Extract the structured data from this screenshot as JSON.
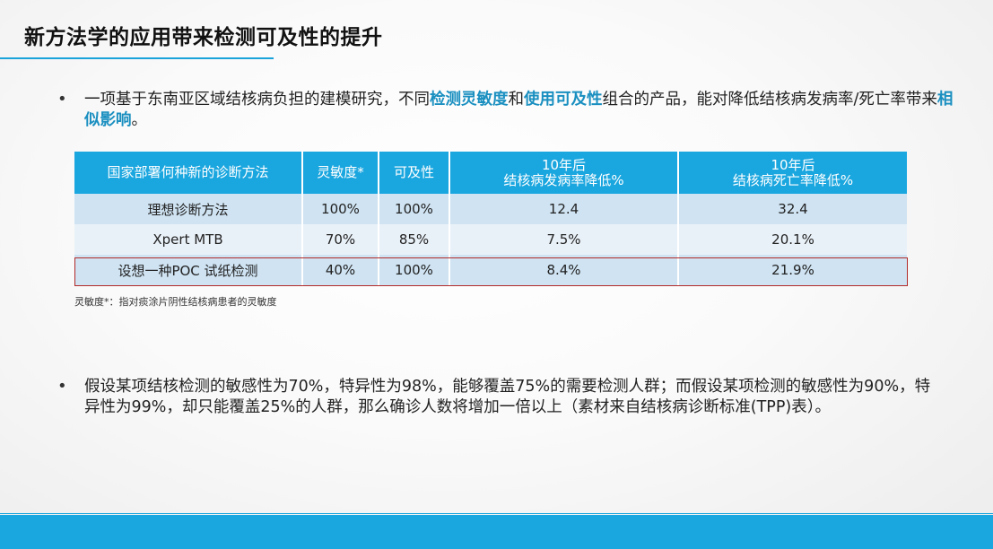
{
  "slide": {
    "title": "新方法学的应用带来检测可及性的提升",
    "accent_color": "#1aa6df"
  },
  "bullet1": {
    "bullet": "•",
    "text_a": "一项基于东南亚区域结核病负担的建模研究，不同",
    "hl_a": "检测灵敏度",
    "text_b": "和",
    "hl_b": "使用可及性",
    "text_c": "组合的产品，能对降低结核病发病率/死亡率带来",
    "hl_c": "相似影响",
    "text_d": "。"
  },
  "table": {
    "headers": [
      {
        "line1": "国家部署何种新的诊断方法",
        "line2": ""
      },
      {
        "line1": "灵敏度*",
        "line2": ""
      },
      {
        "line1": "可及性",
        "line2": ""
      },
      {
        "line1": "10年后",
        "line2": "结核病发病率降低%"
      },
      {
        "line1": "10年后",
        "line2": "结核病死亡率降低%"
      }
    ],
    "rows": [
      [
        "理想诊断方法",
        "100%",
        "100%",
        "12.4",
        "32.4"
      ],
      [
        "Xpert MTB",
        "70%",
        "85%",
        "7.5%",
        "20.1%"
      ],
      [
        "设想一种POC 试纸检测",
        "40%",
        "100%",
        "8.4%",
        "21.9%"
      ]
    ],
    "highlighted_row": 2,
    "footnote": "灵敏度*：指对痰涂片阴性结核病患者的灵敏度"
  },
  "bullet2": {
    "bullet": "•",
    "text": "假设某项结核检测的敏感性为70%，特异性为98%，能够覆盖75%的需要检测人群；而假设某项检测的敏感性为90%，特异性为99%，却只能覆盖25%的人群，那么确诊人数将增加一倍以上（素材来自结核病诊断标准(TPP)表）。"
  }
}
